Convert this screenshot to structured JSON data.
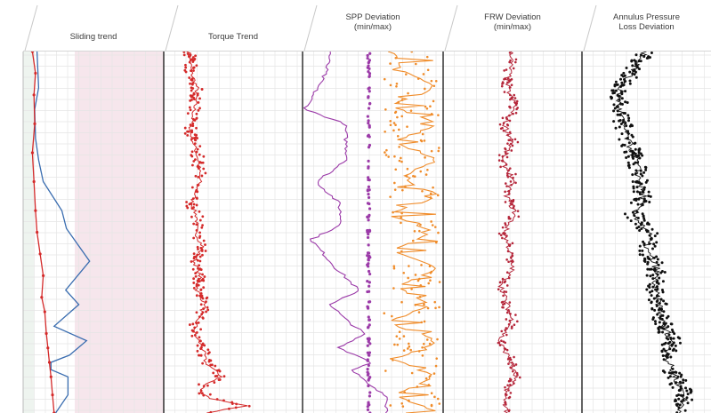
{
  "tracks": [
    {
      "label": "Sliding trend"
    },
    {
      "label": "Torque Trend"
    },
    {
      "label": "SPP Deviation\n(min/max)"
    },
    {
      "label": "FRW Deviation\n(min/max)"
    },
    {
      "label": "Annulus Pressure\nLoss Deviation"
    }
  ],
  "colors": {
    "torque": "#d42a2a",
    "spp_min": "#9b3aa8",
    "spp_max": "#f08c2a",
    "frw": "#b5263a",
    "apl": "#111111",
    "sliding_line": "#3a6db0",
    "sliding_band": "#f6e6ec",
    "grid": "#e5e5e5",
    "separator": "#222222"
  },
  "chart_data": [
    {
      "type": "line",
      "track": "Sliding trend",
      "series": [
        {
          "color": "#3a6db0",
          "x": [
            0.18,
            0.2,
            0.15,
            0.16,
            0.2,
            0.26,
            0.5,
            0.56,
            0.86,
            0.55,
            0.72,
            0.4,
            0.82,
            0.6,
            0.36,
            0.36,
            0.58,
            0.58,
            0.42
          ],
          "y": [
            0,
            0.1,
            0.16,
            0.24,
            0.3,
            0.36,
            0.44,
            0.49,
            0.58,
            0.66,
            0.7,
            0.76,
            0.8,
            0.84,
            0.86,
            0.88,
            0.9,
            0.95,
            1
          ]
        },
        {
          "color": "#d42a2a",
          "x": [
            0.12,
            0.16,
            0.14,
            0.15,
            0.12,
            0.14,
            0.16,
            0.18,
            0.22,
            0.26,
            0.24,
            0.28,
            0.3,
            0.32,
            0.34,
            0.36,
            0.38,
            0.4
          ],
          "y": [
            0,
            0.06,
            0.12,
            0.2,
            0.28,
            0.36,
            0.44,
            0.5,
            0.56,
            0.62,
            0.68,
            0.72,
            0.78,
            0.82,
            0.86,
            0.9,
            0.95,
            1
          ]
        }
      ]
    },
    {
      "type": "scatter",
      "track": "Torque Trend",
      "series": [
        {
          "color": "#d42a2a",
          "x": [
            0.18,
            0.2,
            0.24,
            0.22,
            0.19,
            0.25,
            0.26,
            0.2,
            0.24,
            0.23,
            0.28,
            0.22,
            0.26,
            0.24,
            0.3,
            0.24,
            0.22,
            0.28,
            0.3,
            0.42,
            0.3,
            0.26,
            0.34,
            0.6,
            0.3
          ],
          "y": [
            0,
            0.06,
            0.1,
            0.16,
            0.22,
            0.3,
            0.36,
            0.42,
            0.46,
            0.5,
            0.54,
            0.58,
            0.62,
            0.66,
            0.7,
            0.74,
            0.78,
            0.82,
            0.86,
            0.9,
            0.92,
            0.94,
            0.96,
            0.98,
            1
          ]
        }
      ]
    },
    {
      "type": "line",
      "track": "SPP Deviation (min/max)",
      "series": [
        {
          "name": "",
          "color": "#9b3aa8",
          "x": [
            0.2,
            0.16,
            0.02,
            0.3,
            0.32,
            0.1,
            0.26,
            0.28,
            0.06,
            0.24,
            0.4,
            0.2,
            0.3,
            0.44,
            0.26,
            0.5,
            0.36,
            0.46,
            0.62,
            0.6,
            0.6
          ],
          "y": [
            0,
            0.06,
            0.16,
            0.2,
            0.3,
            0.36,
            0.42,
            0.48,
            0.52,
            0.6,
            0.66,
            0.7,
            0.74,
            0.78,
            0.82,
            0.86,
            0.88,
            0.92,
            0.96,
            0.98,
            1
          ]
        },
        {
          "name": "",
          "color": "#f08c2a",
          "x": [
            0.64,
            0.7,
            0.96,
            0.62,
            0.98,
            0.64,
            0.96,
            0.7,
            0.98,
            0.6,
            0.94,
            0.62,
            0.98,
            0.66,
            0.92,
            0.6,
            0.98,
            0.66,
            0.94,
            0.64,
            0.98
          ],
          "y": [
            0,
            0.05,
            0.1,
            0.15,
            0.2,
            0.25,
            0.3,
            0.35,
            0.4,
            0.45,
            0.5,
            0.55,
            0.6,
            0.65,
            0.7,
            0.75,
            0.8,
            0.85,
            0.9,
            0.95,
            1
          ]
        }
      ]
    },
    {
      "type": "scatter",
      "track": "FRW Deviation (min/max)",
      "series": [
        {
          "color": "#b5263a",
          "x": [
            0.5,
            0.48,
            0.46,
            0.52,
            0.44,
            0.5,
            0.42,
            0.5,
            0.46,
            0.52,
            0.44,
            0.48,
            0.5,
            0.42,
            0.46,
            0.5,
            0.4,
            0.48,
            0.52,
            0.44,
            0.46
          ],
          "y": [
            0,
            0.05,
            0.1,
            0.15,
            0.2,
            0.25,
            0.3,
            0.35,
            0.4,
            0.45,
            0.5,
            0.55,
            0.6,
            0.65,
            0.7,
            0.75,
            0.8,
            0.85,
            0.9,
            0.95,
            1
          ]
        }
      ]
    },
    {
      "type": "scatter",
      "track": "Annulus Pressure Loss Deviation",
      "series": [
        {
          "color": "#111111",
          "x": [
            0.5,
            0.4,
            0.3,
            0.28,
            0.32,
            0.36,
            0.42,
            0.44,
            0.48,
            0.4,
            0.52,
            0.5,
            0.58,
            0.56,
            0.6,
            0.62,
            0.7,
            0.66,
            0.72,
            0.8,
            0.76
          ],
          "y": [
            0,
            0.05,
            0.1,
            0.15,
            0.2,
            0.25,
            0.3,
            0.35,
            0.4,
            0.45,
            0.5,
            0.55,
            0.6,
            0.65,
            0.7,
            0.75,
            0.8,
            0.85,
            0.9,
            0.95,
            1
          ]
        }
      ]
    }
  ]
}
